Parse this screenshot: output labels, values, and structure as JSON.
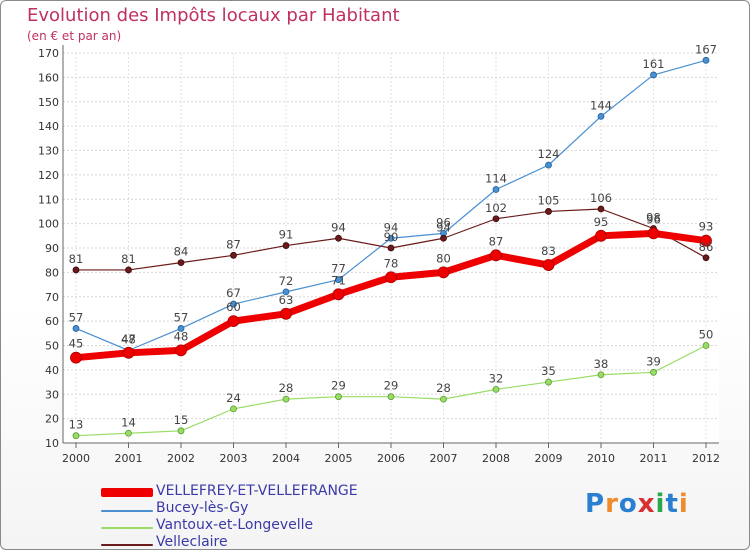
{
  "header": {
    "title": "Evolution des Impôts locaux par Habitant",
    "subtitle": "(en € et par an)"
  },
  "logo": {
    "text": "Proxiti",
    "letters": [
      "P",
      "r",
      "o",
      "x",
      "i",
      "t",
      "i"
    ],
    "colors": [
      "#2a7fd0",
      "#f08a2a",
      "#2a7fd0",
      "#d83030",
      "#2aa84a",
      "#2a7fd0",
      "#f08a2a"
    ]
  },
  "chart_data": {
    "type": "line",
    "title": "Evolution des Impôts locaux par Habitant",
    "subtitle": "(en € et par an)",
    "xlabel": "",
    "ylabel": "",
    "categories": [
      "2000",
      "2001",
      "2002",
      "2003",
      "2004",
      "2005",
      "2006",
      "2007",
      "2008",
      "2009",
      "2010",
      "2011",
      "2012"
    ],
    "ylim": [
      10,
      170
    ],
    "yticks": [
      10,
      20,
      30,
      40,
      50,
      60,
      70,
      80,
      90,
      100,
      110,
      120,
      130,
      140,
      150,
      160,
      170
    ],
    "grid": "horizontal",
    "legend_position": "bottom-left",
    "series": [
      {
        "name": "VELLEFREY-ET-VELLEFRANGE",
        "color": "#ee0000",
        "values": [
          45,
          47,
          48,
          60,
          63,
          71,
          78,
          80,
          87,
          83,
          95,
          96,
          93
        ]
      },
      {
        "name": "Bucey-lès-Gy",
        "color": "#4a8fd0",
        "values": [
          57,
          48,
          57,
          67,
          72,
          77,
          94,
          96,
          114,
          124,
          144,
          161,
          167
        ]
      },
      {
        "name": "Vantoux-et-Longevelle",
        "color": "#99dd66",
        "values": [
          13,
          14,
          15,
          24,
          28,
          29,
          29,
          28,
          32,
          35,
          38,
          39,
          50
        ]
      },
      {
        "name": "Velleclaire",
        "color": "#6a1a1a",
        "values": [
          81,
          81,
          84,
          87,
          91,
          94,
          90,
          94,
          102,
          105,
          106,
          98,
          86
        ]
      }
    ]
  }
}
